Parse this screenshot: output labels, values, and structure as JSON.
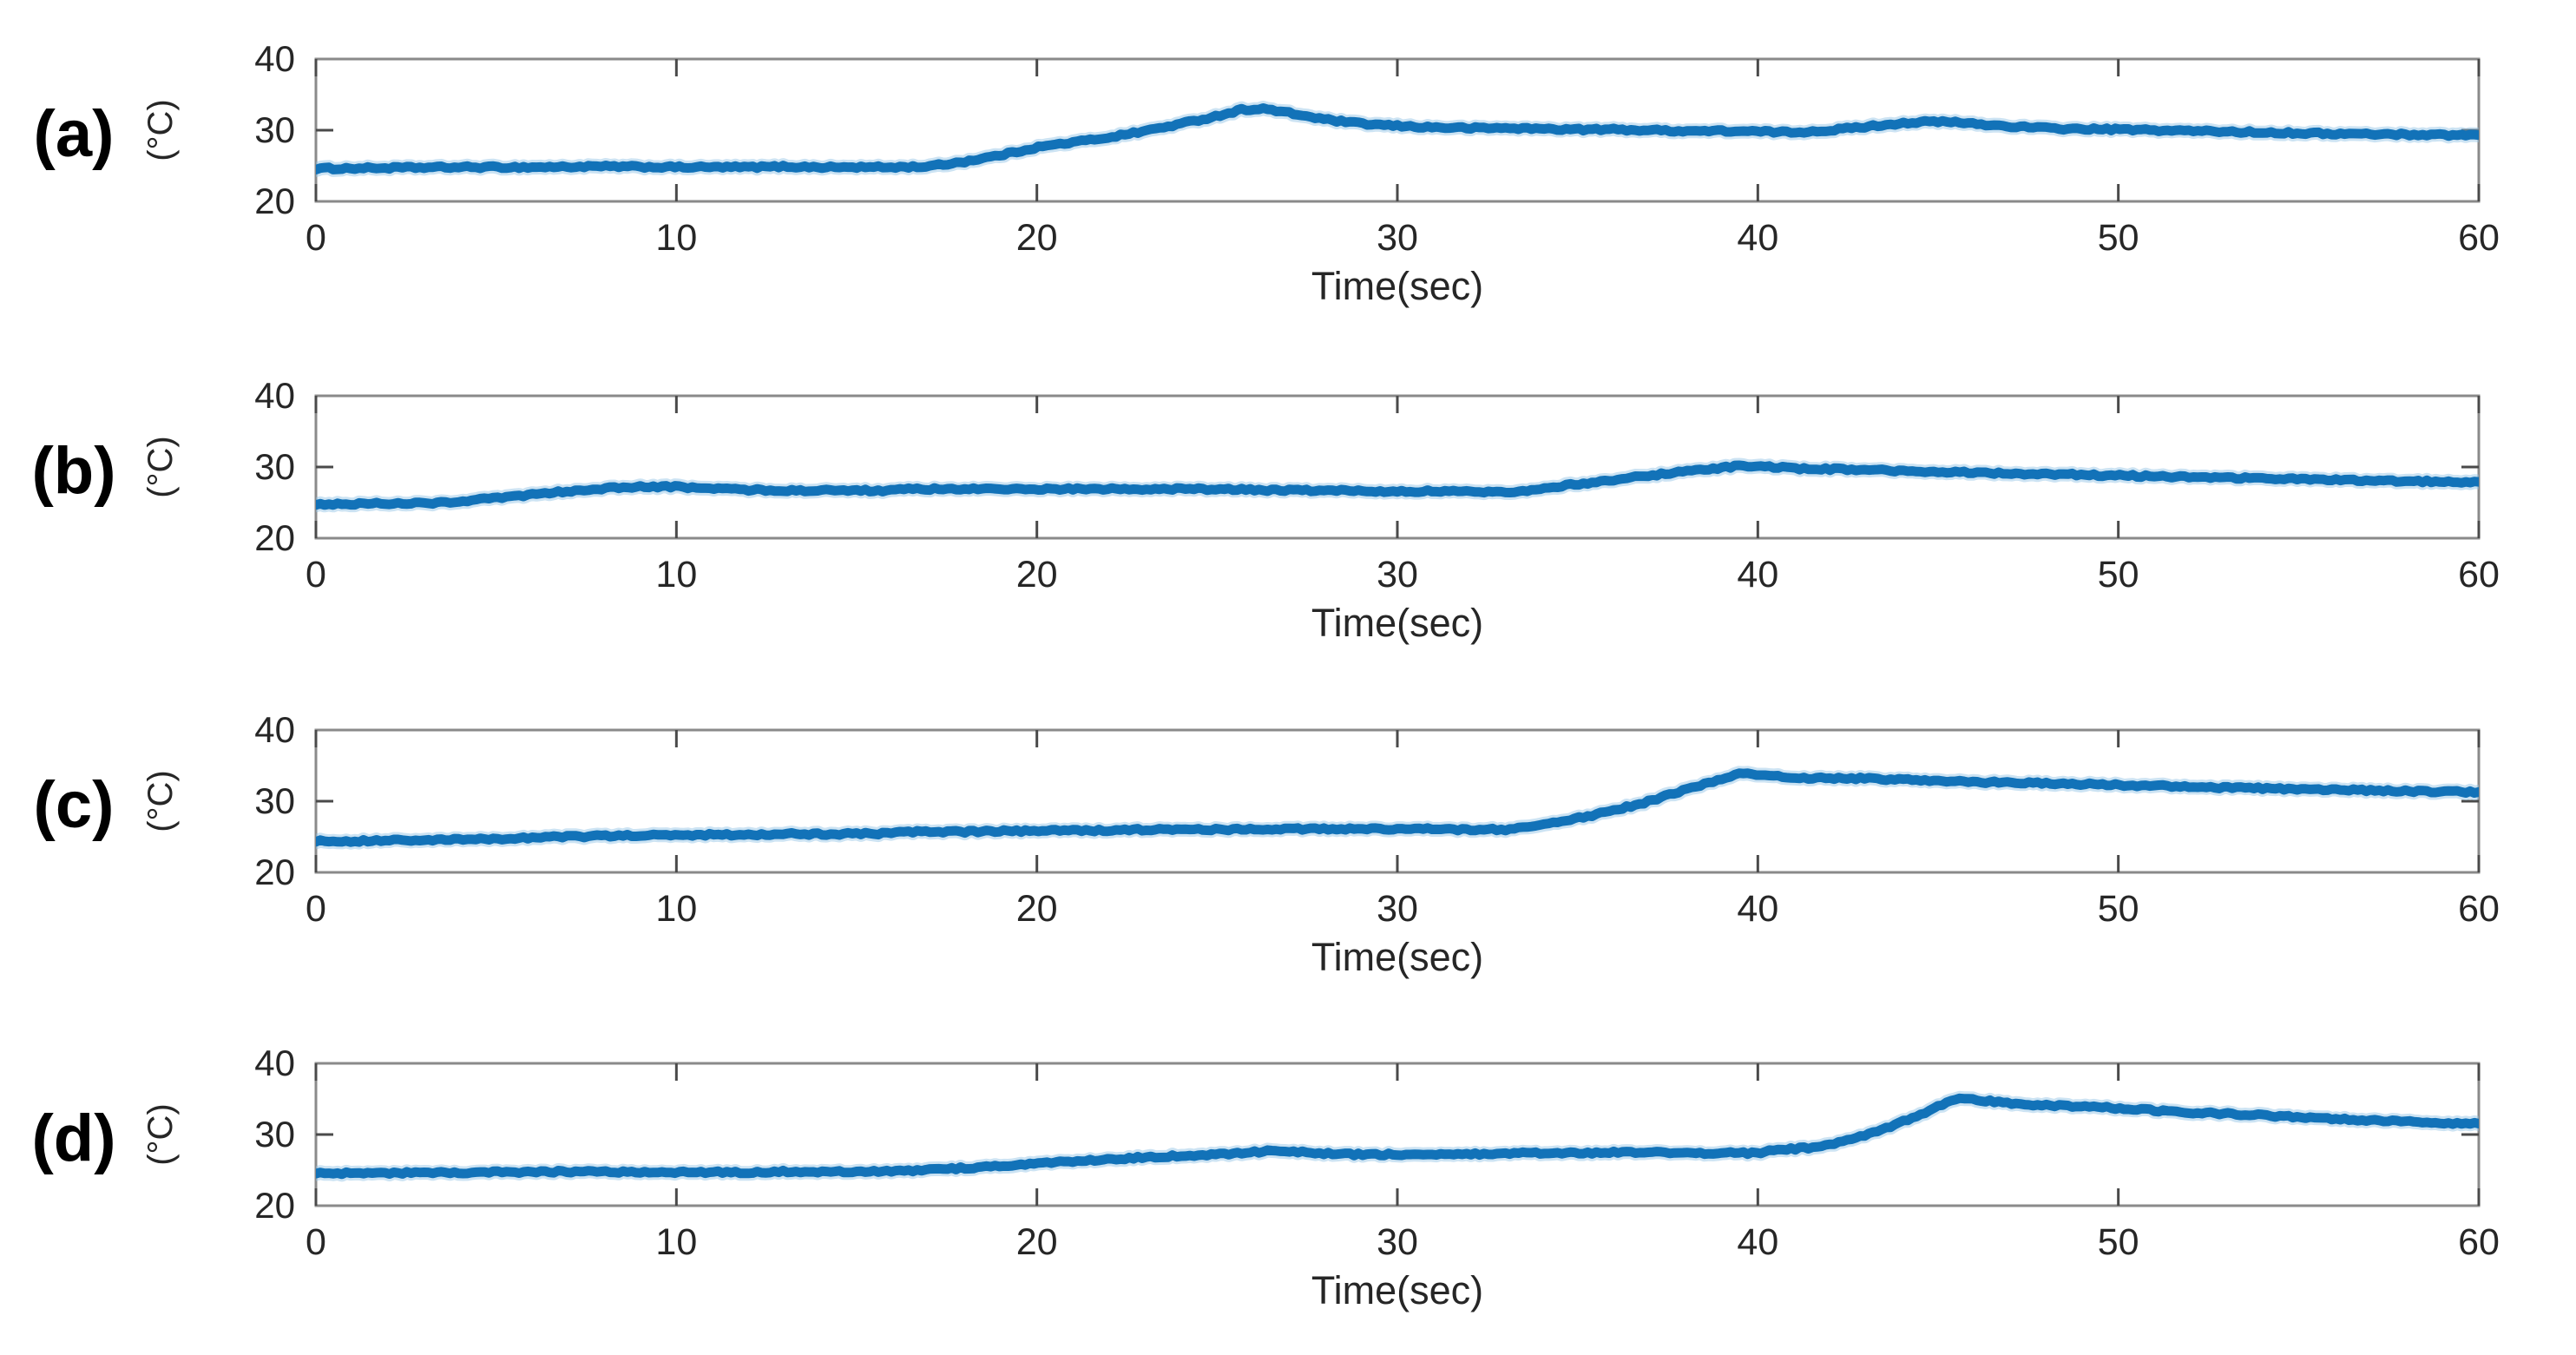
{
  "figure": {
    "background": "#ffffff"
  },
  "panels": [
    {
      "label": "(a)"
    },
    {
      "label": "(b)"
    },
    {
      "label": "(c)"
    },
    {
      "label": "(d)"
    }
  ],
  "axis": {
    "ylabel": "(°C)",
    "xlabel": "Time(sec)",
    "ytick_labels": [
      "40",
      "30",
      "20"
    ],
    "ytick_values": [
      40,
      30,
      20
    ],
    "xtick_labels": [
      "0",
      "10",
      "20",
      "30",
      "40",
      "50",
      "60"
    ],
    "xtick_values": [
      0,
      10,
      20,
      30,
      40,
      50,
      60
    ],
    "xlim": [
      0,
      60
    ],
    "ylim": [
      20,
      40
    ]
  },
  "colors": {
    "line": "#1272b8",
    "line_halo": "#8fc0e4",
    "box": "#8a8a8a",
    "tick": "#4a4a4a",
    "text": "#262626"
  },
  "chart_data": [
    {
      "type": "line",
      "name": "(a)",
      "xlabel": "Time(sec)",
      "ylabel": "(°C)",
      "xlim": [
        0,
        60
      ],
      "ylim": [
        20,
        40
      ],
      "grid": false,
      "legend": null,
      "points": [
        [
          0,
          24.6
        ],
        [
          2,
          24.7
        ],
        [
          4,
          24.8
        ],
        [
          6,
          24.8
        ],
        [
          8,
          24.9
        ],
        [
          10,
          24.8
        ],
        [
          12,
          24.8
        ],
        [
          13,
          24.9
        ],
        [
          14,
          24.8
        ],
        [
          16,
          24.8
        ],
        [
          17,
          24.9
        ],
        [
          18,
          25.6
        ],
        [
          19,
          26.5
        ],
        [
          20,
          27.6
        ],
        [
          21,
          28.3
        ],
        [
          22,
          29.0
        ],
        [
          23,
          29.9
        ],
        [
          24,
          30.9
        ],
        [
          25,
          32.0
        ],
        [
          25.7,
          32.9
        ],
        [
          26.3,
          33.0
        ],
        [
          27,
          32.4
        ],
        [
          28,
          31.5
        ],
        [
          29,
          30.9
        ],
        [
          30,
          30.6
        ],
        [
          31,
          30.4
        ],
        [
          32,
          30.3
        ],
        [
          33,
          30.3
        ],
        [
          34,
          30.2
        ],
        [
          35,
          30.1
        ],
        [
          36,
          30.1
        ],
        [
          37,
          30.0
        ],
        [
          38,
          29.9
        ],
        [
          39,
          29.9
        ],
        [
          40,
          29.8
        ],
        [
          41,
          29.7
        ],
        [
          42,
          30.0
        ],
        [
          43,
          30.5
        ],
        [
          44,
          31.0
        ],
        [
          44.8,
          31.2
        ],
        [
          45.5,
          31.1
        ],
        [
          46.5,
          30.7
        ],
        [
          47.5,
          30.4
        ],
        [
          48.5,
          30.2
        ],
        [
          50,
          30.1
        ],
        [
          52,
          29.9
        ],
        [
          54,
          29.7
        ],
        [
          56,
          29.5
        ],
        [
          58,
          29.4
        ],
        [
          60,
          29.3
        ]
      ]
    },
    {
      "type": "line",
      "name": "(b)",
      "xlabel": "Time(sec)",
      "ylabel": "(°C)",
      "xlim": [
        0,
        60
      ],
      "ylim": [
        20,
        40
      ],
      "grid": false,
      "legend": null,
      "points": [
        [
          0,
          24.8
        ],
        [
          1,
          24.8
        ],
        [
          2,
          24.9
        ],
        [
          3,
          24.9
        ],
        [
          3.5,
          25.0
        ],
        [
          4,
          25.2
        ],
        [
          5,
          25.6
        ],
        [
          6,
          26.1
        ],
        [
          7,
          26.6
        ],
        [
          8,
          27.0
        ],
        [
          9,
          27.2
        ],
        [
          10,
          27.2
        ],
        [
          11,
          27.0
        ],
        [
          12,
          26.8
        ],
        [
          13,
          26.7
        ],
        [
          14,
          26.7
        ],
        [
          15,
          26.7
        ],
        [
          16,
          26.7
        ],
        [
          16.5,
          26.9
        ],
        [
          18,
          26.9
        ],
        [
          20,
          26.9
        ],
        [
          22,
          26.9
        ],
        [
          24,
          26.9
        ],
        [
          26,
          26.8
        ],
        [
          27,
          26.7
        ],
        [
          28,
          26.7
        ],
        [
          30,
          26.6
        ],
        [
          31,
          26.6
        ],
        [
          32,
          26.5
        ],
        [
          33,
          26.5
        ],
        [
          33.4,
          26.6
        ],
        [
          34,
          27.0
        ],
        [
          35,
          27.6
        ],
        [
          36,
          28.2
        ],
        [
          37,
          28.8
        ],
        [
          38,
          29.4
        ],
        [
          39,
          29.9
        ],
        [
          39.6,
          30.2
        ],
        [
          40.3,
          30.0
        ],
        [
          41,
          29.8
        ],
        [
          42,
          29.7
        ],
        [
          43,
          29.6
        ],
        [
          44,
          29.4
        ],
        [
          45,
          29.3
        ],
        [
          46,
          29.2
        ],
        [
          47,
          29.1
        ],
        [
          48,
          29.0
        ],
        [
          50,
          28.8
        ],
        [
          52,
          28.6
        ],
        [
          54,
          28.4
        ],
        [
          56,
          28.2
        ],
        [
          58,
          28.0
        ],
        [
          60,
          27.9
        ]
      ]
    },
    {
      "type": "line",
      "name": "(c)",
      "xlabel": "Time(sec)",
      "ylabel": "(°C)",
      "xlim": [
        0,
        60
      ],
      "ylim": [
        20,
        40
      ],
      "grid": false,
      "legend": null,
      "points": [
        [
          0,
          24.4
        ],
        [
          1,
          24.4
        ],
        [
          2,
          24.5
        ],
        [
          3,
          24.5
        ],
        [
          4,
          24.6
        ],
        [
          5,
          24.7
        ],
        [
          6,
          24.9
        ],
        [
          7,
          25.0
        ],
        [
          8,
          25.1
        ],
        [
          9,
          25.2
        ],
        [
          10,
          25.2
        ],
        [
          11,
          25.3
        ],
        [
          12,
          25.3
        ],
        [
          13,
          25.4
        ],
        [
          14,
          25.4
        ],
        [
          15,
          25.4
        ],
        [
          16,
          25.5
        ],
        [
          16.5,
          25.7
        ],
        [
          18,
          25.7
        ],
        [
          19,
          25.8
        ],
        [
          20,
          25.8
        ],
        [
          21,
          25.9
        ],
        [
          22,
          25.9
        ],
        [
          23,
          26.0
        ],
        [
          24,
          26.0
        ],
        [
          25,
          26.0
        ],
        [
          26,
          26.1
        ],
        [
          27,
          26.1
        ],
        [
          28,
          26.1
        ],
        [
          29,
          26.1
        ],
        [
          30,
          26.1
        ],
        [
          31,
          26.1
        ],
        [
          32,
          26.0
        ],
        [
          33,
          26.0
        ],
        [
          33.3,
          26.1
        ],
        [
          34,
          26.7
        ],
        [
          35,
          27.6
        ],
        [
          36,
          28.7
        ],
        [
          37,
          30.0
        ],
        [
          38,
          31.6
        ],
        [
          39,
          33.2
        ],
        [
          39.6,
          33.9
        ],
        [
          40.2,
          33.6
        ],
        [
          41,
          33.3
        ],
        [
          42,
          33.2
        ],
        [
          43,
          33.2
        ],
        [
          44,
          33.0
        ],
        [
          45,
          32.9
        ],
        [
          46,
          32.7
        ],
        [
          47,
          32.6
        ],
        [
          48,
          32.5
        ],
        [
          49,
          32.4
        ],
        [
          50,
          32.3
        ],
        [
          52,
          32.0
        ],
        [
          54,
          31.8
        ],
        [
          56,
          31.6
        ],
        [
          58,
          31.4
        ],
        [
          60,
          31.3
        ]
      ]
    },
    {
      "type": "line",
      "name": "(d)",
      "xlabel": "Time(sec)",
      "ylabel": "(°C)",
      "xlim": [
        0,
        60
      ],
      "ylim": [
        20,
        40
      ],
      "grid": false,
      "legend": null,
      "points": [
        [
          0,
          24.5
        ],
        [
          2,
          24.6
        ],
        [
          4,
          24.6
        ],
        [
          5,
          24.7
        ],
        [
          6,
          24.7
        ],
        [
          7,
          24.8
        ],
        [
          8,
          24.8
        ],
        [
          9,
          24.7
        ],
        [
          10,
          24.7
        ],
        [
          11,
          24.7
        ],
        [
          12,
          24.7
        ],
        [
          13,
          24.8
        ],
        [
          14,
          24.8
        ],
        [
          15,
          24.8
        ],
        [
          16,
          24.8
        ],
        [
          16.5,
          24.9
        ],
        [
          17,
          25.0
        ],
        [
          18,
          25.3
        ],
        [
          19,
          25.6
        ],
        [
          20,
          25.9
        ],
        [
          21,
          26.2
        ],
        [
          22,
          26.5
        ],
        [
          23,
          26.8
        ],
        [
          24,
          27.0
        ],
        [
          25,
          27.2
        ],
        [
          26,
          27.5
        ],
        [
          26.7,
          27.8
        ],
        [
          27.4,
          27.5
        ],
        [
          28,
          27.3
        ],
        [
          29,
          27.2
        ],
        [
          30,
          27.2
        ],
        [
          31,
          27.2
        ],
        [
          32,
          27.2
        ],
        [
          33,
          27.3
        ],
        [
          33.4,
          27.4
        ],
        [
          34,
          27.4
        ],
        [
          35,
          27.4
        ],
        [
          36,
          27.5
        ],
        [
          37,
          27.5
        ],
        [
          38,
          27.4
        ],
        [
          39,
          27.4
        ],
        [
          40,
          27.4
        ],
        [
          40.5,
          27.8
        ],
        [
          41,
          28.0
        ],
        [
          41.7,
          28.2
        ],
        [
          42.3,
          29.0
        ],
        [
          43,
          30.0
        ],
        [
          43.7,
          31.2
        ],
        [
          44.4,
          32.6
        ],
        [
          45,
          33.9
        ],
        [
          45.6,
          35.2
        ],
        [
          46.2,
          34.8
        ],
        [
          47,
          34.4
        ],
        [
          48,
          34.1
        ],
        [
          49,
          33.9
        ],
        [
          50,
          33.7
        ],
        [
          51,
          33.4
        ],
        [
          52,
          33.1
        ],
        [
          53,
          32.9
        ],
        [
          54,
          32.7
        ],
        [
          55,
          32.4
        ],
        [
          56,
          32.2
        ],
        [
          57,
          32.0
        ],
        [
          58,
          31.8
        ],
        [
          59,
          31.6
        ],
        [
          60,
          31.5
        ]
      ]
    }
  ]
}
